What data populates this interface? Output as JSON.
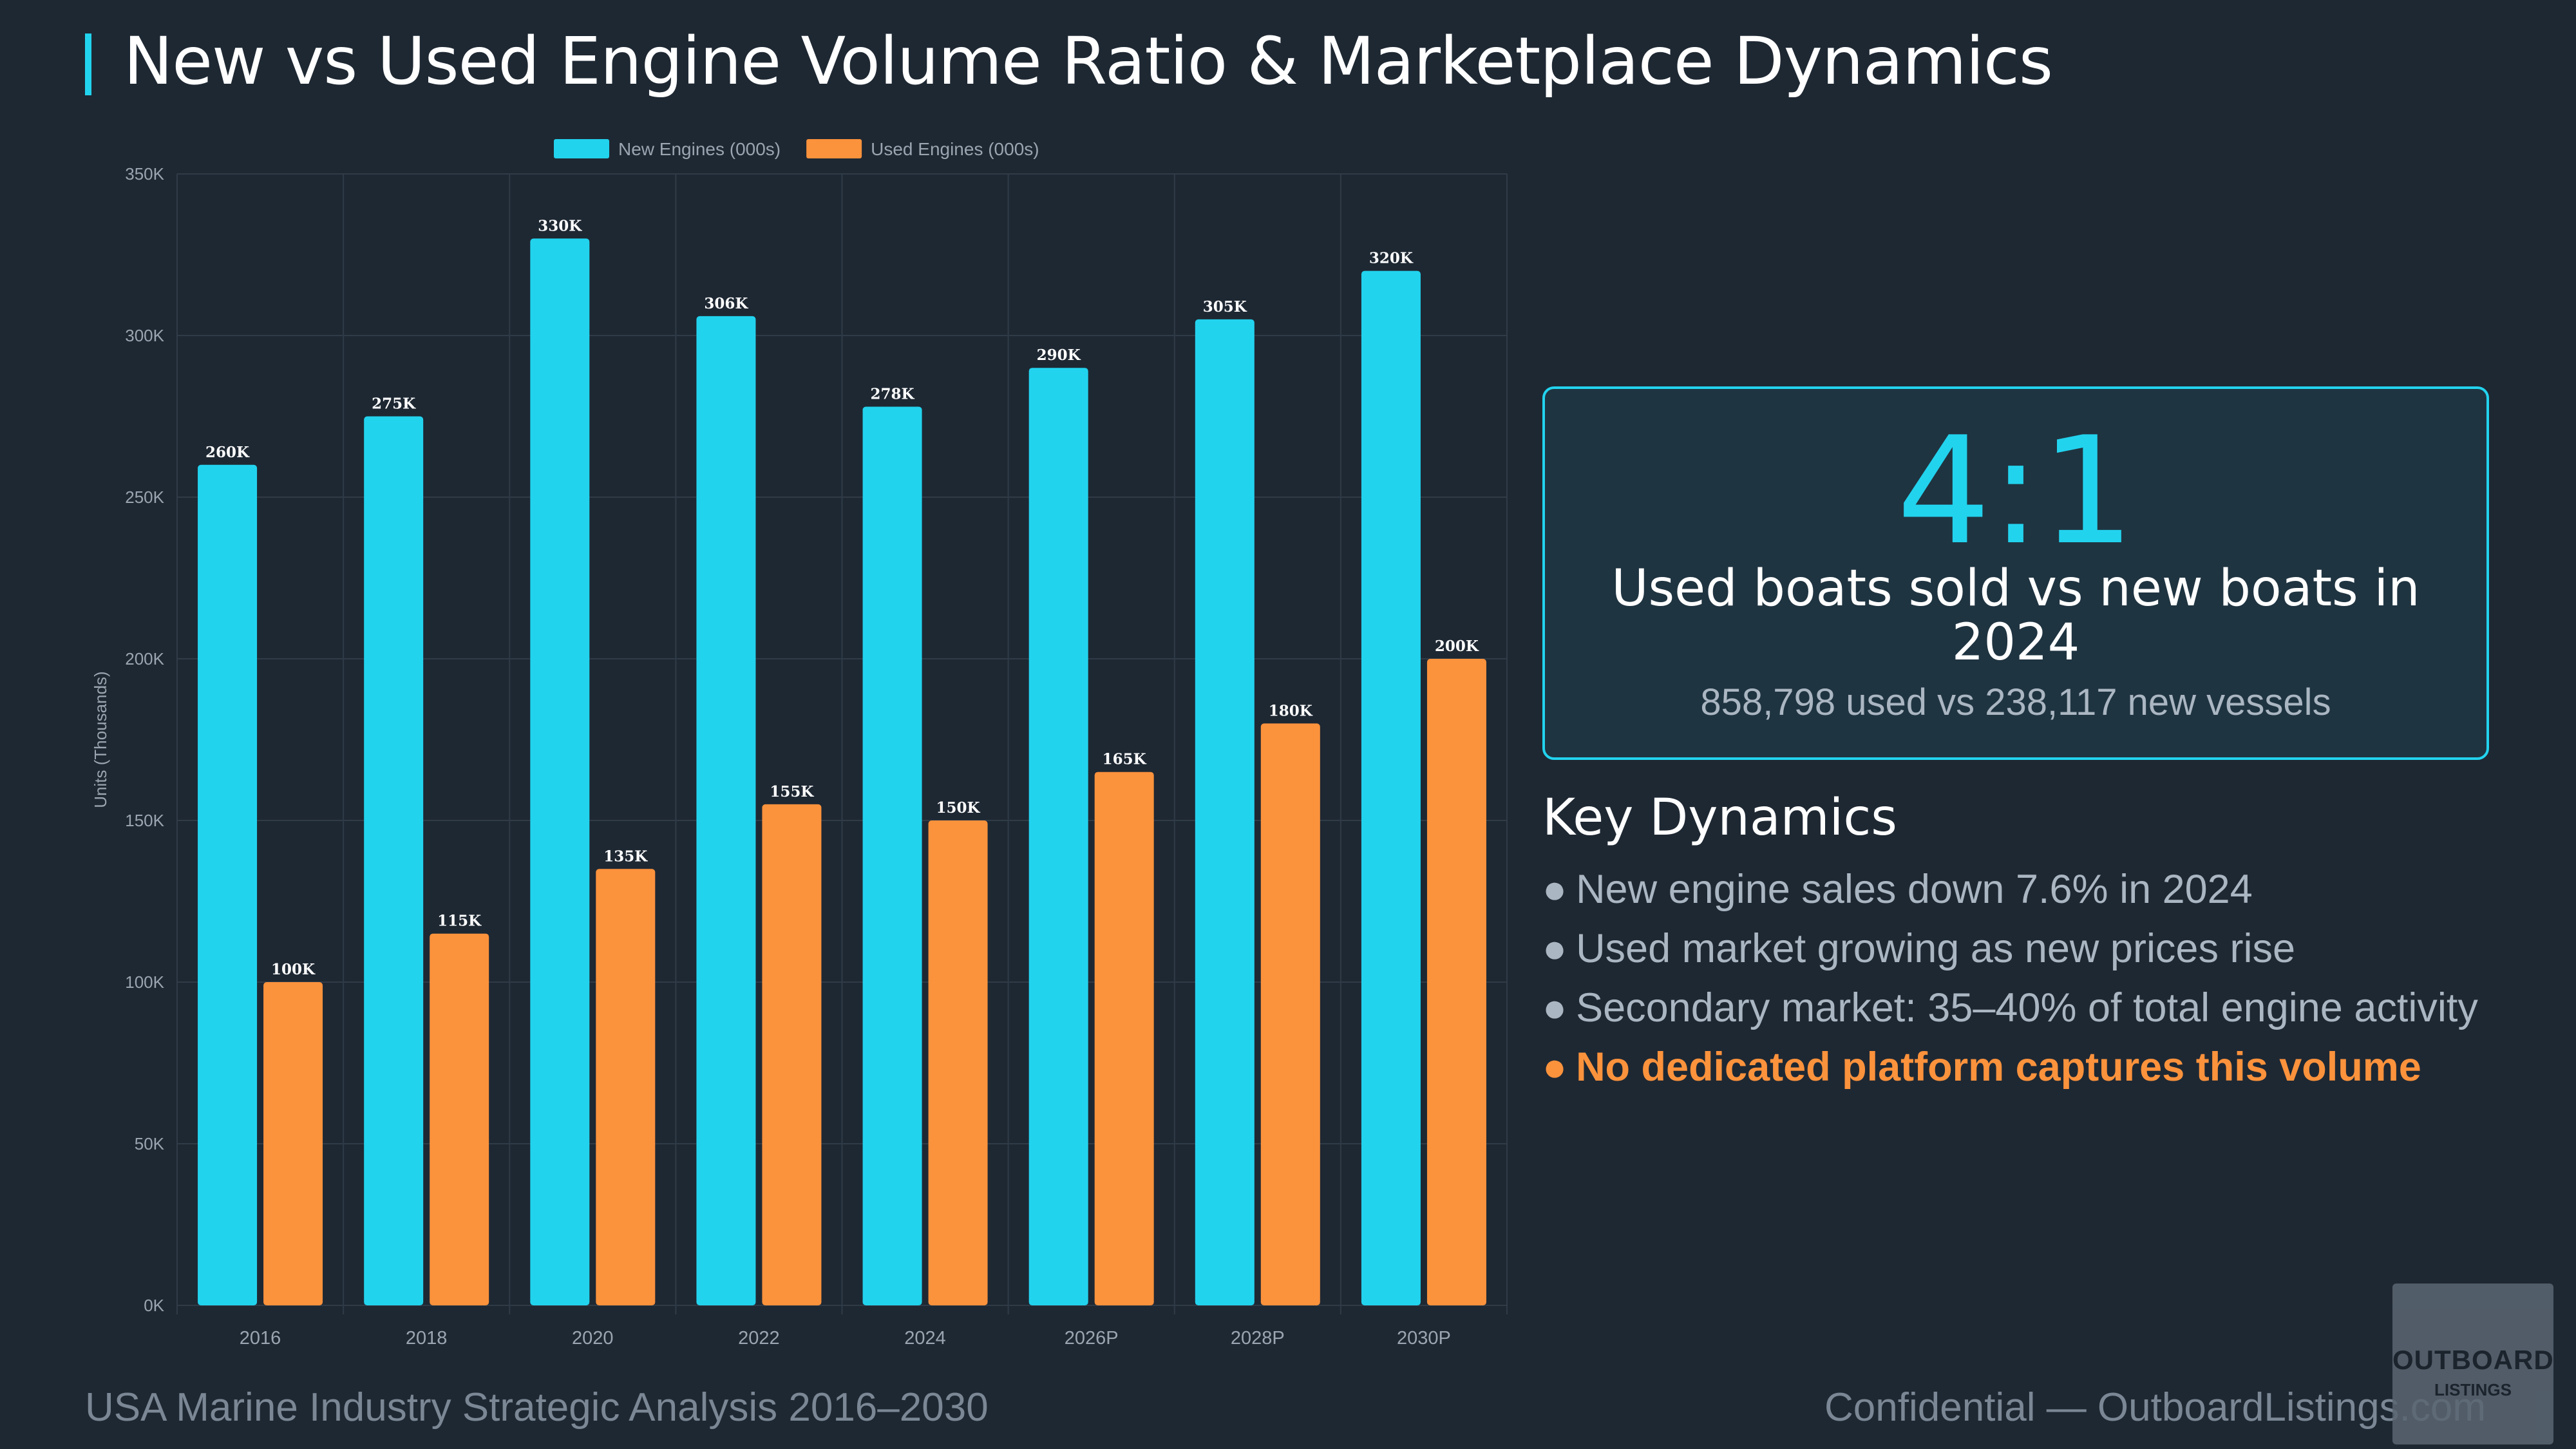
{
  "header": {
    "title": "New vs Used Engine Volume Ratio & Marketplace Dynamics"
  },
  "chart_data": {
    "type": "bar",
    "categories": [
      "2016",
      "2018",
      "2020",
      "2022",
      "2024",
      "2026P",
      "2028P",
      "2030P"
    ],
    "series": [
      {
        "name": "New Engines (000s)",
        "color": "#22d3ee",
        "values": [
          260,
          275,
          330,
          306,
          278,
          290,
          305,
          320
        ]
      },
      {
        "name": "Used Engines (000s)",
        "color": "#fb923c",
        "values": [
          100,
          115,
          135,
          155,
          150,
          165,
          180,
          200
        ]
      }
    ],
    "data_labels": {
      "New Engines (000s)": [
        "260K",
        "275K",
        "330K",
        "306K",
        "278K",
        "290K",
        "305K",
        "320K"
      ],
      "Used Engines (000s)": [
        "100K",
        "115K",
        "135K",
        "155K",
        "150K",
        "165K",
        "180K",
        "200K"
      ]
    },
    "ylabel": "Units (Thousands)",
    "xlabel": "",
    "ylim": [
      0,
      350
    ],
    "yticks": [
      0,
      50,
      100,
      150,
      200,
      250,
      300,
      350
    ],
    "ytick_labels": [
      "0K",
      "50K",
      "100K",
      "150K",
      "200K",
      "250K",
      "300K",
      "350K"
    ],
    "grid": true,
    "legend": "top-center"
  },
  "ratio_card": {
    "value": "4:1",
    "label": "Used boats sold vs new boats in 2024",
    "sub": "858,798 used vs 238,117 new vessels"
  },
  "dynamics": {
    "title": "Key Dynamics",
    "bullet": "●",
    "items": [
      "New engine sales down 7.6% in 2024",
      "Used market growing as new prices rise",
      "Secondary market: 35–40% of total engine activity"
    ],
    "highlight": "No dedicated platform captures this volume",
    "highlight_color": "#fb923c"
  },
  "footer": {
    "left": "USA Marine Industry Strategic Analysis 2016–2030",
    "right": "Confidential — OutboardListings.com"
  },
  "logo": {
    "text": "OUTBOARD",
    "subtext": "LISTINGS"
  }
}
